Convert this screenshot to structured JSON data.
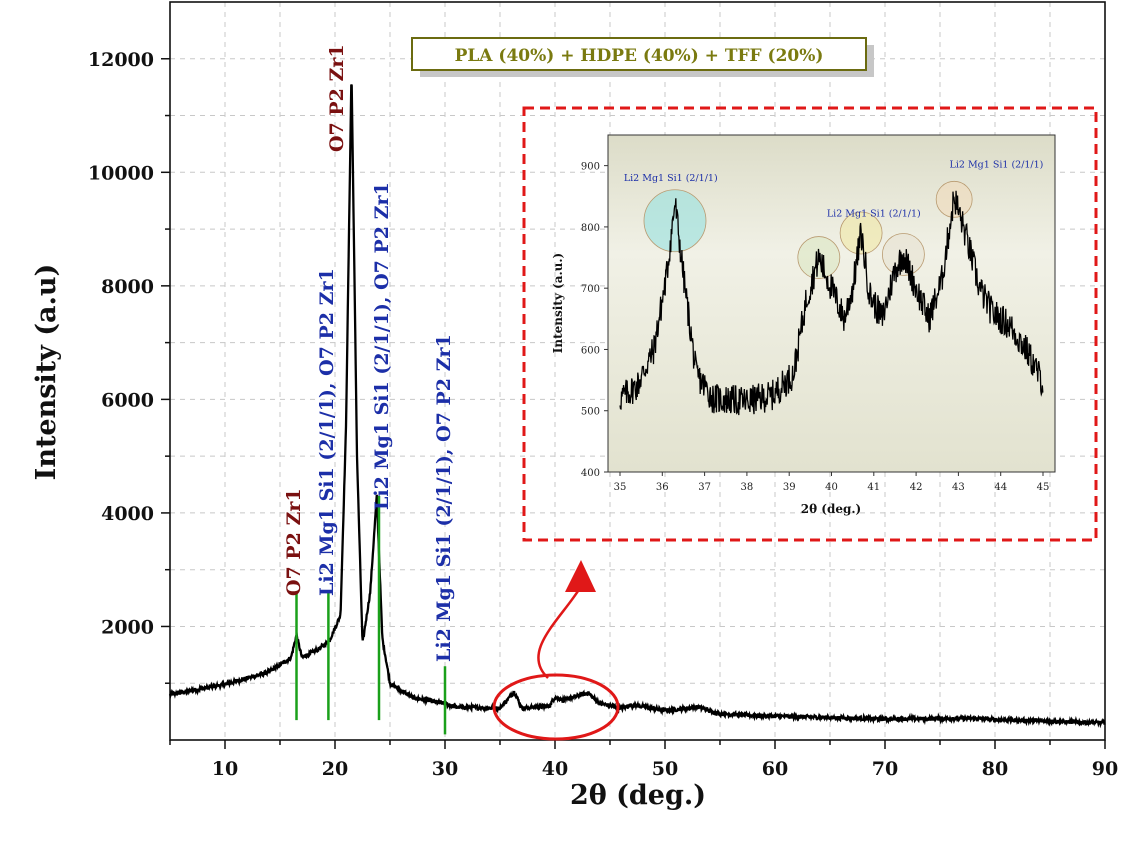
{
  "chart_data": {
    "main": {
      "type": "line",
      "title_box": "PLA (40%) + HDPE (40%) + TFF (20%)",
      "xlabel": "2θ (deg.)",
      "ylabel": "Intensity (a.u)",
      "xlim": [
        5,
        90
      ],
      "ylim": [
        0,
        13000
      ],
      "x_ticks": [
        10,
        20,
        30,
        40,
        50,
        60,
        70,
        80,
        90
      ],
      "y_ticks": [
        2000,
        4000,
        6000,
        8000,
        10000,
        12000
      ],
      "grid": true,
      "series_profile": [
        [
          5,
          800
        ],
        [
          10,
          980
        ],
        [
          14,
          1200
        ],
        [
          16,
          1450
        ],
        [
          16.5,
          1850
        ],
        [
          17,
          1450
        ],
        [
          18.5,
          1600
        ],
        [
          19.5,
          1750
        ],
        [
          20.5,
          2200
        ],
        [
          21,
          5500
        ],
        [
          21.5,
          11800
        ],
        [
          22,
          5000
        ],
        [
          22.5,
          1700
        ],
        [
          23.2,
          2600
        ],
        [
          23.8,
          4300
        ],
        [
          24.3,
          1800
        ],
        [
          25,
          1000
        ],
        [
          27,
          750
        ],
        [
          30,
          640
        ],
        [
          31,
          580
        ],
        [
          35,
          560
        ],
        [
          36.3,
          850
        ],
        [
          37,
          560
        ],
        [
          39.5,
          600
        ],
        [
          40,
          760
        ],
        [
          40.8,
          700
        ],
        [
          41.5,
          740
        ],
        [
          43,
          830
        ],
        [
          44,
          650
        ],
        [
          46,
          560
        ],
        [
          47,
          620
        ],
        [
          50,
          520
        ],
        [
          53,
          580
        ],
        [
          55,
          460
        ],
        [
          60,
          420
        ],
        [
          70,
          370
        ],
        [
          78,
          380
        ],
        [
          80,
          360
        ],
        [
          85,
          330
        ],
        [
          90,
          300
        ]
      ],
      "peak_markers": [
        {
          "x": 16.5,
          "top": 2600,
          "bottom": 350,
          "label": "O7 P2 Zr1",
          "color": "#7a1010"
        },
        {
          "x": 19.4,
          "top": 2600,
          "bottom": 350,
          "label": "Li2 Mg1 Si1 (2/1/1), O7 P2 Zr1",
          "color": "#1c2fa8"
        },
        {
          "x": 21.5,
          "top": null,
          "bottom": null,
          "label": "O7 P2 Zr1",
          "color": "#7a1010"
        },
        {
          "x": 24.0,
          "top": 4300,
          "bottom": 350,
          "label": "Li2 Mg1 Si1 (2/1/1), O7 P2 Zr1",
          "color": "#1c2fa8"
        },
        {
          "x": 30.0,
          "top": 1300,
          "bottom": 100,
          "label": "Li2 Mg1 Si1 (2/1/1), O7 P2 Zr1",
          "color": "#1c2fa8"
        }
      ]
    },
    "inset": {
      "type": "line",
      "xlabel": "2θ (deg.)",
      "ylabel": "Intensity (a.u.)",
      "xlim": [
        35,
        45
      ],
      "ylim": [
        400,
        950
      ],
      "x_ticks": [
        35,
        36,
        37,
        38,
        39,
        40,
        41,
        42,
        43,
        44,
        45
      ],
      "y_ticks": [
        400,
        500,
        600,
        700,
        800,
        900
      ],
      "series_profile": [
        [
          35,
          520
        ],
        [
          35.4,
          540
        ],
        [
          35.8,
          600
        ],
        [
          36.1,
          720
        ],
        [
          36.3,
          840
        ],
        [
          36.5,
          720
        ],
        [
          36.8,
          560
        ],
        [
          37.2,
          520
        ],
        [
          38,
          515
        ],
        [
          38.6,
          525
        ],
        [
          39.1,
          560
        ],
        [
          39.4,
          680
        ],
        [
          39.7,
          750
        ],
        [
          40,
          700
        ],
        [
          40.3,
          650
        ],
        [
          40.5,
          700
        ],
        [
          40.7,
          790
        ],
        [
          40.9,
          690
        ],
        [
          41.2,
          650
        ],
        [
          41.5,
          730
        ],
        [
          41.7,
          755
        ],
        [
          42,
          700
        ],
        [
          42.3,
          650
        ],
        [
          42.6,
          710
        ],
        [
          42.9,
          850
        ],
        [
          43.2,
          780
        ],
        [
          43.5,
          700
        ],
        [
          43.8,
          660
        ],
        [
          44.2,
          640
        ],
        [
          44.6,
          600
        ],
        [
          45,
          545
        ]
      ],
      "annotations": [
        {
          "label": "Li2 Mg1 Si1 (2/1/1)",
          "x": 36.2,
          "y": 875
        },
        {
          "label": "Li2 Mg1 Si1 (2/1/1)",
          "x": 41.0,
          "y": 817
        },
        {
          "label": "Li2 Mg1 Si1 (2/1/1)",
          "x": 43.9,
          "y": 897
        }
      ],
      "highlight_circles": [
        {
          "x": 36.3,
          "y": 810,
          "color": "#8ee0e0"
        },
        {
          "x": 39.7,
          "y": 750,
          "color": "#d8e6c0"
        },
        {
          "x": 40.7,
          "y": 790,
          "color": "#f0e8a0"
        },
        {
          "x": 41.7,
          "y": 755,
          "color": "#e6e0d0"
        },
        {
          "x": 42.9,
          "y": 845,
          "color": "#f0d8b8"
        }
      ]
    },
    "colors": {
      "series": "#000000",
      "marker_line": "#1aa01a",
      "dashed_box": "#e01818",
      "ellipse": "#e01818",
      "legend_border": "#6b6b10"
    }
  }
}
